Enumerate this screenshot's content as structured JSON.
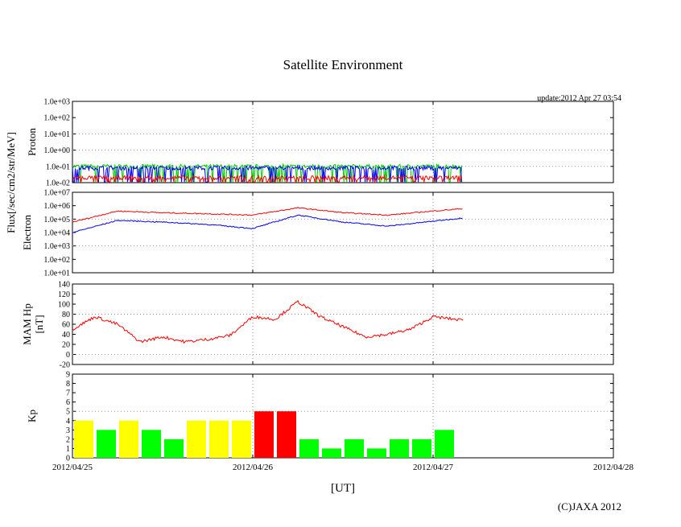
{
  "title": "Satellite Environment",
  "update_text": "update:2012 Apr 27 03:54",
  "flux_ylabel": "Flux[/sec/cm2/str/MeV]",
  "xlabel": "[UT]",
  "copyright": "(C)JAXA 2012",
  "x_ticks": [
    "2012/04/25",
    "2012/04/26",
    "2012/04/27",
    "2012/04/28"
  ],
  "colors": {
    "red": "#ff0000",
    "blue": "#0000ff",
    "green": "#00cc00",
    "yellow": "#ffff00",
    "kp_green": "#00ff00",
    "kp_red": "#ff0000",
    "grid": "#999999"
  },
  "chart_data": [
    {
      "type": "line",
      "panel": "proton",
      "ylabel": "Proton",
      "yscale": "log",
      "ylim": [
        0.01,
        1000
      ],
      "y_ticks": [
        "1.0e-02",
        "1.0e-01",
        "1.0e+00",
        "1.0e+01",
        "1.0e+02",
        "1.0e+03"
      ],
      "xlim": [
        "2012/04/25",
        "2012/04/28"
      ],
      "data_end": "2012/04/27 03:54",
      "series": [
        {
          "color": "green",
          "approx_level": 0.1
        },
        {
          "color": "blue",
          "approx_level": 0.08
        },
        {
          "color": "red",
          "approx_level": 0.02
        }
      ]
    },
    {
      "type": "line",
      "panel": "electron",
      "ylabel": "Electron",
      "yscale": "log",
      "ylim": [
        10,
        10000000
      ],
      "y_ticks": [
        "1.0e+01",
        "1.0e+02",
        "1.0e+03",
        "1.0e+04",
        "1.0e+05",
        "1.0e+06",
        "1.0e+07"
      ],
      "x": [
        "2012/04/25 00:00",
        "2012/04/25 06:00",
        "2012/04/25 12:00",
        "2012/04/25 18:00",
        "2012/04/26 00:00",
        "2012/04/26 06:00",
        "2012/04/26 12:00",
        "2012/04/26 18:00",
        "2012/04/27 00:00",
        "2012/04/27 03:54"
      ],
      "series": [
        {
          "color": "red",
          "values": [
            60000,
            400000,
            300000,
            250000,
            200000,
            700000,
            300000,
            200000,
            400000,
            600000
          ]
        },
        {
          "color": "blue",
          "values": [
            10000,
            80000,
            60000,
            40000,
            20000,
            200000,
            60000,
            30000,
            70000,
            120000
          ]
        }
      ]
    },
    {
      "type": "line",
      "panel": "mam_hp",
      "ylabel": "MAM Hp [nT]",
      "ylim": [
        -20,
        140
      ],
      "y_ticks": [
        "-20",
        "0",
        "20",
        "40",
        "60",
        "80",
        "100",
        "120",
        "140"
      ],
      "x": [
        "2012/04/25 00:00",
        "2012/04/25 03:00",
        "2012/04/25 06:00",
        "2012/04/25 09:00",
        "2012/04/25 12:00",
        "2012/04/25 15:00",
        "2012/04/25 18:00",
        "2012/04/25 21:00",
        "2012/04/26 00:00",
        "2012/04/26 03:00",
        "2012/04/26 06:00",
        "2012/04/26 09:00",
        "2012/04/26 12:00",
        "2012/04/26 15:00",
        "2012/04/26 18:00",
        "2012/04/26 21:00",
        "2012/04/27 00:00",
        "2012/04/27 04:00"
      ],
      "series": [
        {
          "color": "red",
          "values": [
            50,
            75,
            60,
            25,
            35,
            25,
            30,
            38,
            75,
            70,
            105,
            75,
            55,
            35,
            40,
            50,
            75,
            68
          ]
        }
      ]
    },
    {
      "type": "bar",
      "panel": "kp",
      "ylabel": "Kp",
      "ylim": [
        0,
        9
      ],
      "y_ticks": [
        "0",
        "1",
        "2",
        "3",
        "4",
        "5",
        "6",
        "7",
        "8",
        "9"
      ],
      "categories": [
        "04/25 00",
        "04/25 03",
        "04/25 06",
        "04/25 09",
        "04/25 12",
        "04/25 15",
        "04/25 18",
        "04/25 21",
        "04/26 00",
        "04/26 03",
        "04/26 06",
        "04/26 09",
        "04/26 12",
        "04/26 15",
        "04/26 18",
        "04/26 21",
        "04/27 00"
      ],
      "values": [
        4,
        3,
        4,
        3,
        2,
        4,
        4,
        4,
        5,
        5,
        2,
        1,
        2,
        1,
        2,
        2,
        3
      ],
      "bar_colors": [
        "yellow",
        "kp_green",
        "yellow",
        "kp_green",
        "kp_green",
        "yellow",
        "yellow",
        "yellow",
        "kp_red",
        "kp_red",
        "kp_green",
        "kp_green",
        "kp_green",
        "kp_green",
        "kp_green",
        "kp_green",
        "kp_green"
      ]
    }
  ]
}
